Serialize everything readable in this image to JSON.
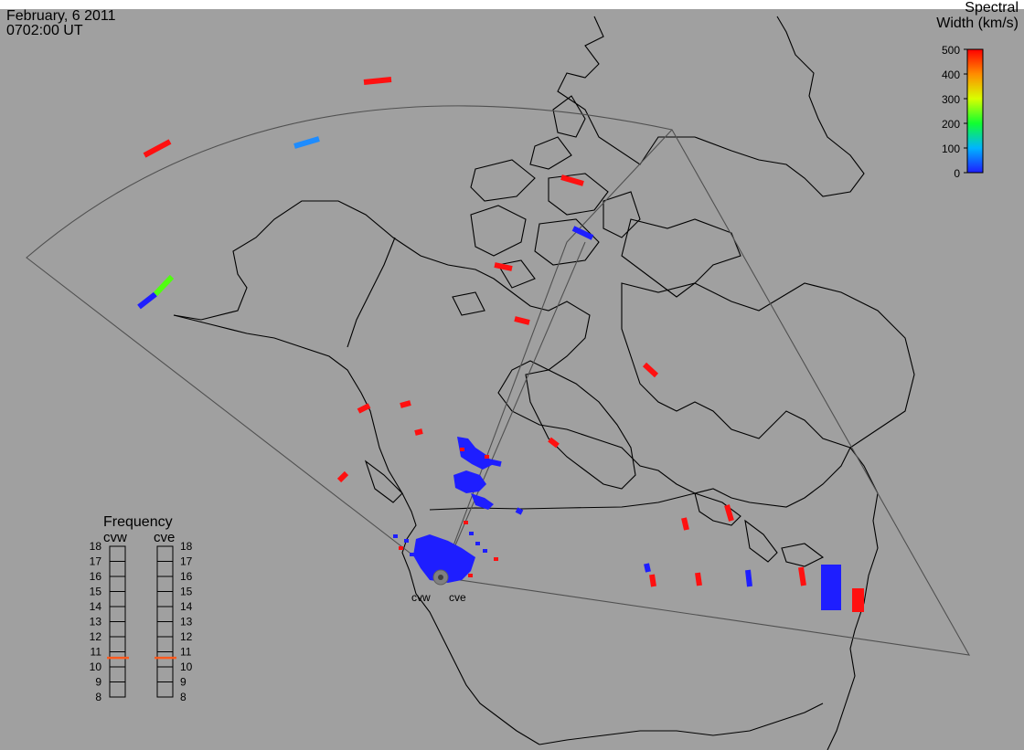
{
  "header": {
    "date": "February, 6 2011",
    "time": "0702:00 UT"
  },
  "colorbar": {
    "title_line1": "Spectral",
    "title_line2": "Width (km/s)",
    "ticks": [
      "500",
      "400",
      "300",
      "200",
      "100",
      "0"
    ],
    "min": 0,
    "max": 500
  },
  "radars": {
    "west": {
      "label": "cvw"
    },
    "east": {
      "label": "cve"
    }
  },
  "frequency_panel": {
    "title": "Frequency",
    "columns": [
      "cvw",
      "cve"
    ],
    "scale_labels": [
      "18",
      "17",
      "16",
      "15",
      "14",
      "13",
      "12",
      "11",
      "10",
      "9",
      "8"
    ],
    "markers_mhz": {
      "cvw": 10.6,
      "cve": 10.6
    },
    "marker_color": "#ff5a1e"
  },
  "colors": {
    "background": "#a0a0a0",
    "coastline": "#000000",
    "fov": "#505050",
    "red": "#ff1010",
    "blue": "#1e1eff",
    "lightblue": "#1e8cff",
    "green": "#50ff10"
  }
}
